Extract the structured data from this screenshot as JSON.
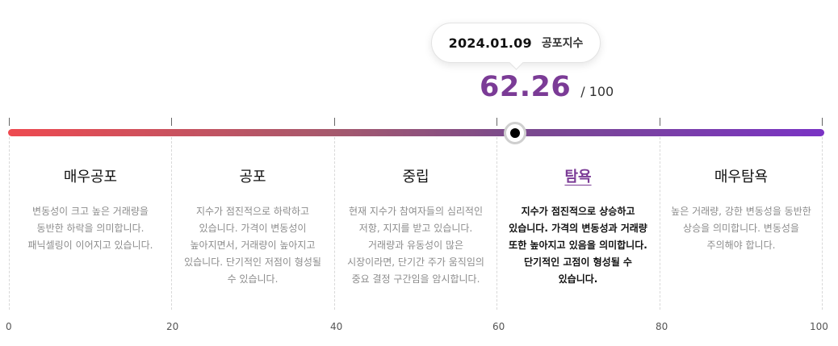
{
  "tooltip": {
    "date": "2024.01.09",
    "index_name": "공포지수"
  },
  "score": {
    "value": "62.26",
    "max_label": "/ 100",
    "value_numeric": 62.26,
    "scale_max": 100
  },
  "colors": {
    "accent": "#7b3b96",
    "gradient_start": "#ee4a50",
    "gradient_end": "#7a33c4"
  },
  "zones": [
    {
      "title": "매우공포",
      "description": "변동성이 크고 높은 거래량을 동반한 하락을 의미합니다. 패닉셀링이 이어지고 있습니다."
    },
    {
      "title": "공포",
      "description": "지수가 점진적으로 하락하고 있습니다. 가격이 변동성이 높아지면서, 거래량이 높아지고 있습니다. 단기적인 저점이 형성될 수 있습니다."
    },
    {
      "title": "중립",
      "description": "현재 지수가 참여자들의 심리적인 저항, 지지를 받고 있습니다. 거래량과 유동성이 많은 시장이라면, 단기간 주가 움직임의 중요 결정 구간임을 암시합니다."
    },
    {
      "title": "탐욕",
      "description": "지수가 점진적으로 상승하고 있습니다. 가격의 변동성과 거래량 또한 높아지고 있음을 의미합니다. 단기적인 고점이 형성될 수 있습니다."
    },
    {
      "title": "매우탐욕",
      "description": "높은 거래량, 강한 변동성을 동반한 상승을 의미합니다. 변동성을 주의해야 합니다."
    }
  ],
  "active_zone": "탐욕",
  "axis": {
    "labels": [
      "0",
      "20",
      "40",
      "60",
      "80",
      "100"
    ]
  }
}
